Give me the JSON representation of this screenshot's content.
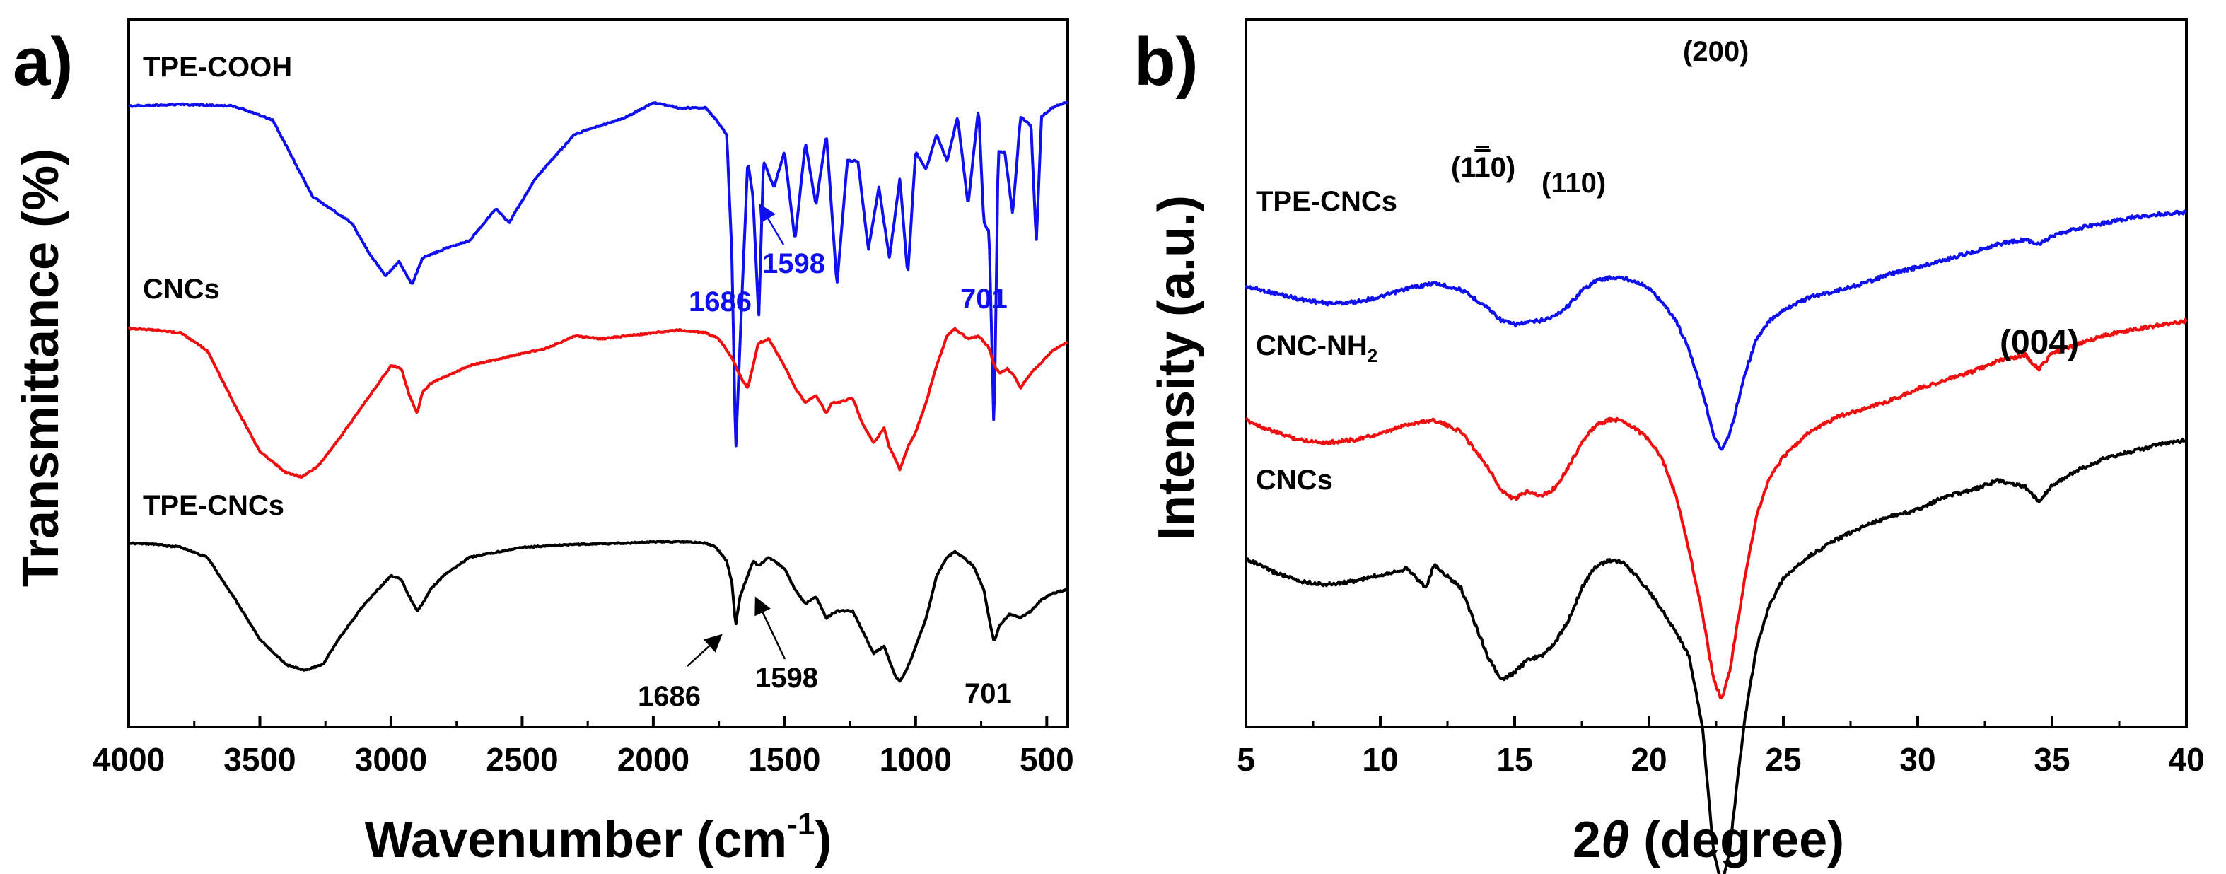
{
  "chart_data": [
    {
      "panel": "a)",
      "type": "line",
      "xlabel": "Wavenumber (cm",
      "xlabel_sup": "-1",
      "xlabel_end": ")",
      "ylabel": "Transmittance (%)",
      "xlim": [
        4000,
        420
      ],
      "xticks": [
        "4000",
        "3500",
        "3000",
        "2500",
        "2000",
        "1500",
        "1000",
        "500"
      ],
      "series": [
        {
          "name": "TPE-COOH",
          "color": "#1010ee",
          "x": [
            4000,
            3800,
            3600,
            3450,
            3300,
            3150,
            3080,
            3020,
            2970,
            2920,
            2880,
            2800,
            2700,
            2600,
            2550,
            2450,
            2300,
            2100,
            2000,
            1900,
            1800,
            1760,
            1720,
            1700,
            1686,
            1670,
            1640,
            1620,
            1598,
            1580,
            1540,
            1500,
            1460,
            1420,
            1380,
            1340,
            1300,
            1260,
            1220,
            1180,
            1140,
            1100,
            1060,
            1030,
            1000,
            960,
            920,
            880,
            840,
            800,
            760,
            740,
            720,
            701,
            685,
            660,
            630,
            600,
            560,
            540,
            520,
            480,
            430
          ],
          "y": [
            0.04,
            0.03,
            0.04,
            0.12,
            0.55,
            0.7,
            0.88,
            1.0,
            0.92,
            1.05,
            0.9,
            0.85,
            0.8,
            0.62,
            0.7,
            0.45,
            0.2,
            0.1,
            0.02,
            0.05,
            0.05,
            0.12,
            0.2,
            0.9,
            2.0,
            1.4,
            0.35,
            0.55,
            1.25,
            0.35,
            0.5,
            0.3,
            0.8,
            0.25,
            0.6,
            0.2,
            1.05,
            0.35,
            0.35,
            0.85,
            0.5,
            0.9,
            0.45,
            1.0,
            0.3,
            0.4,
            0.2,
            0.35,
            0.1,
            0.6,
            0.05,
            0.7,
            0.75,
            1.9,
            0.3,
            0.3,
            0.65,
            0.1,
            0.15,
            0.82,
            0.1,
            0.05,
            0.02
          ]
        },
        {
          "name": "CNCs",
          "color": "#ee1010",
          "x": [
            4000,
            3900,
            3800,
            3700,
            3600,
            3500,
            3400,
            3340,
            3280,
            3200,
            3100,
            3000,
            2960,
            2930,
            2900,
            2880,
            2850,
            2800,
            2700,
            2500,
            2400,
            2300,
            2200,
            2000,
            1900,
            1800,
            1750,
            1700,
            1660,
            1640,
            1600,
            1560,
            1500,
            1460,
            1420,
            1380,
            1340,
            1320,
            1300,
            1240,
            1200,
            1160,
            1120,
            1100,
            1080,
            1060,
            1030,
            1000,
            960,
            920,
            880,
            850,
            800,
            760,
            720,
            700,
            680,
            650,
            620,
            600,
            560,
            520,
            480,
            430
          ],
          "y": [
            0.05,
            0.06,
            0.08,
            0.2,
            0.55,
            0.88,
            1.02,
            1.05,
            0.98,
            0.8,
            0.55,
            0.3,
            0.32,
            0.5,
            0.62,
            0.48,
            0.42,
            0.38,
            0.3,
            0.22,
            0.18,
            0.1,
            0.12,
            0.08,
            0.06,
            0.08,
            0.12,
            0.25,
            0.4,
            0.45,
            0.15,
            0.12,
            0.3,
            0.45,
            0.55,
            0.5,
            0.62,
            0.55,
            0.55,
            0.52,
            0.7,
            0.82,
            0.72,
            0.85,
            0.92,
            1.0,
            0.85,
            0.75,
            0.55,
            0.3,
            0.1,
            0.05,
            0.12,
            0.1,
            0.18,
            0.3,
            0.35,
            0.32,
            0.38,
            0.45,
            0.35,
            0.28,
            0.2,
            0.15
          ]
        },
        {
          "name": "TPE-CNCs",
          "color": "#000000",
          "x": [
            4000,
            3900,
            3800,
            3700,
            3600,
            3500,
            3400,
            3330,
            3260,
            3200,
            3100,
            3000,
            2960,
            2930,
            2900,
            2880,
            2850,
            2800,
            2700,
            2500,
            2300,
            2100,
            2000,
            1900,
            1800,
            1760,
            1720,
            1700,
            1686,
            1670,
            1640,
            1620,
            1598,
            1560,
            1500,
            1460,
            1420,
            1380,
            1340,
            1300,
            1240,
            1200,
            1160,
            1120,
            1100,
            1080,
            1060,
            1030,
            1000,
            960,
            920,
            880,
            850,
            820,
            780,
            740,
            720,
            701,
            680,
            640,
            600,
            560,
            520,
            480,
            430
          ],
          "y": [
            0.02,
            0.03,
            0.05,
            0.12,
            0.4,
            0.7,
            0.88,
            0.92,
            0.88,
            0.7,
            0.45,
            0.25,
            0.28,
            0.4,
            0.5,
            0.45,
            0.35,
            0.25,
            0.12,
            0.05,
            0.03,
            0.02,
            0.01,
            0.01,
            0.02,
            0.05,
            0.15,
            0.3,
            0.6,
            0.4,
            0.25,
            0.15,
            0.18,
            0.12,
            0.2,
            0.35,
            0.45,
            0.4,
            0.55,
            0.5,
            0.5,
            0.65,
            0.8,
            0.75,
            0.85,
            0.95,
            1.0,
            0.9,
            0.75,
            0.55,
            0.25,
            0.12,
            0.08,
            0.12,
            0.18,
            0.35,
            0.55,
            0.72,
            0.6,
            0.52,
            0.55,
            0.5,
            0.42,
            0.38,
            0.35
          ]
        }
      ],
      "annotations": [
        {
          "text": "1686",
          "series": "TPE-COOH",
          "color": "#1010ee"
        },
        {
          "text": "1598",
          "series": "TPE-COOH",
          "color": "#1010ee"
        },
        {
          "text": "701",
          "series": "TPE-COOH",
          "color": "#1010ee"
        },
        {
          "text": "1686",
          "series": "TPE-CNCs",
          "color": "#000000"
        },
        {
          "text": "1598",
          "series": "TPE-CNCs",
          "color": "#000000"
        },
        {
          "text": "701",
          "series": "TPE-CNCs",
          "color": "#000000"
        }
      ]
    },
    {
      "panel": "b)",
      "type": "line",
      "xlabel": "2",
      "xlabel_theta": "θ",
      "xlabel_end": " (degree)",
      "ylabel": "Intensity (a.u.)",
      "xlim": [
        5,
        40
      ],
      "xticks": [
        "5",
        "10",
        "15",
        "20",
        "25",
        "30",
        "35",
        "40"
      ],
      "series": [
        {
          "name": "TPE-CNCs",
          "color": "#1010ee",
          "x": [
            5,
            6,
            7,
            8,
            9,
            10,
            11,
            12,
            13,
            14,
            14.5,
            15,
            15.5,
            16,
            16.5,
            17,
            17.5,
            18,
            18.5,
            19,
            19.5,
            20,
            20.5,
            21,
            21.5,
            22,
            22.4,
            22.7,
            23,
            23.3,
            23.6,
            24,
            24.5,
            25,
            26,
            27,
            28,
            29,
            30,
            31,
            32,
            33,
            34,
            34.5,
            35,
            36,
            37,
            38,
            39,
            40
          ],
          "y": [
            0.1,
            0.16,
            0.22,
            0.26,
            0.25,
            0.2,
            0.12,
            0.07,
            0.13,
            0.3,
            0.42,
            0.46,
            0.44,
            0.42,
            0.38,
            0.28,
            0.14,
            0.05,
            0.02,
            0.02,
            0.05,
            0.12,
            0.25,
            0.42,
            0.7,
            1.1,
            1.5,
            1.65,
            1.5,
            1.2,
            0.9,
            0.6,
            0.42,
            0.32,
            0.2,
            0.14,
            0.07,
            -0.02,
            -0.08,
            -0.15,
            -0.22,
            -0.3,
            -0.34,
            -0.3,
            -0.37,
            -0.45,
            -0.5,
            -0.55,
            -0.58,
            -0.6
          ]
        },
        {
          "name": "CNC-NH",
          "name_sub": "2",
          "color": "#ee1010",
          "x": [
            5,
            6,
            7,
            8,
            9,
            10,
            11,
            12,
            13,
            14,
            14.5,
            15,
            15.5,
            16,
            16.5,
            17,
            17.5,
            18,
            18.5,
            19,
            19.5,
            20,
            20.5,
            21,
            21.5,
            22,
            22.4,
            22.7,
            23,
            23.3,
            23.6,
            24,
            24.5,
            25,
            26,
            27,
            28,
            29,
            30,
            31,
            32,
            33,
            34,
            34.5,
            35,
            36,
            37,
            38,
            39,
            40
          ],
          "y": [
            0.02,
            0.1,
            0.16,
            0.18,
            0.16,
            0.12,
            0.05,
            0.02,
            0.1,
            0.35,
            0.52,
            0.58,
            0.52,
            0.56,
            0.5,
            0.35,
            0.18,
            0.06,
            0.02,
            0.02,
            0.08,
            0.16,
            0.3,
            0.55,
            0.95,
            1.4,
            1.85,
            2.0,
            1.8,
            1.45,
            1.1,
            0.7,
            0.42,
            0.28,
            0.1,
            0.0,
            -0.06,
            -0.12,
            -0.2,
            -0.26,
            -0.32,
            -0.4,
            -0.44,
            -0.34,
            -0.45,
            -0.52,
            -0.58,
            -0.62,
            -0.65,
            -0.68
          ]
        },
        {
          "name": "CNCs",
          "color": "#000000",
          "x": [
            5,
            6,
            7,
            8,
            9,
            10,
            11,
            11.7,
            12,
            13,
            14,
            14.5,
            15,
            15.5,
            16,
            16.5,
            17,
            17.5,
            18,
            18.5,
            19,
            19.5,
            20,
            20.5,
            21,
            21.5,
            22,
            22.4,
            22.7,
            23,
            23.3,
            23.6,
            24,
            24.5,
            25,
            26,
            27,
            28,
            29,
            30,
            31,
            32,
            33,
            34,
            34.5,
            35,
            36,
            37,
            38,
            39,
            40
          ],
          "y": [
            0.0,
            0.08,
            0.14,
            0.16,
            0.14,
            0.1,
            0.06,
            0.18,
            0.04,
            0.18,
            0.6,
            0.75,
            0.7,
            0.62,
            0.6,
            0.52,
            0.38,
            0.18,
            0.05,
            0.01,
            0.02,
            0.1,
            0.2,
            0.32,
            0.45,
            0.6,
            1.05,
            1.8,
            2.0,
            1.8,
            1.35,
            0.95,
            0.55,
            0.28,
            0.12,
            -0.02,
            -0.12,
            -0.2,
            -0.26,
            -0.3,
            -0.38,
            -0.42,
            -0.48,
            -0.44,
            -0.35,
            -0.45,
            -0.55,
            -0.62,
            -0.66,
            -0.7,
            -0.73
          ]
        }
      ],
      "annotations": [
        {
          "text": "(1",
          "over": "1",
          "tail": "0)"
        },
        {
          "text": "(110)"
        },
        {
          "text": "(200)"
        },
        {
          "text": "(004)"
        }
      ]
    }
  ]
}
